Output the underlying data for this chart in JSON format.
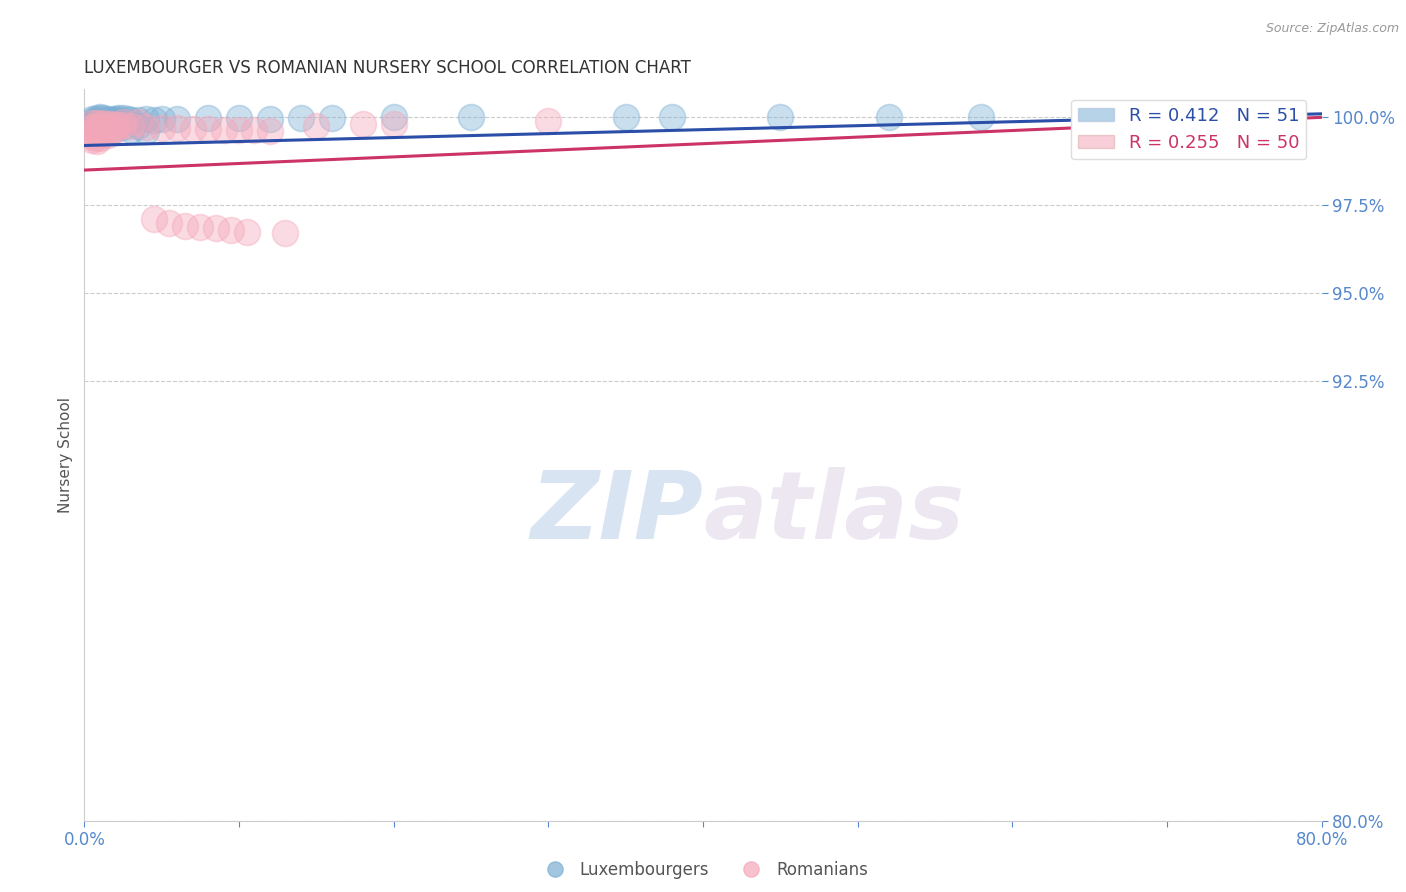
{
  "title": "LUXEMBOURGER VS ROMANIAN NURSERY SCHOOL CORRELATION CHART",
  "source": "Source: ZipAtlas.com",
  "ylabel": "Nursery School",
  "xlim": [
    0.0,
    0.8
  ],
  "ylim": [
    0.8,
    1.008
  ],
  "xticks": [
    0.0,
    0.1,
    0.2,
    0.3,
    0.4,
    0.5,
    0.6,
    0.7,
    0.8
  ],
  "xticklabels": [
    "0.0%",
    "",
    "",
    "",
    "",
    "",
    "",
    "",
    "80.0%"
  ],
  "yticks": [
    0.8,
    0.925,
    0.95,
    0.975,
    1.0
  ],
  "yticklabels": [
    "80.0%",
    "92.5%",
    "95.0%",
    "97.5%",
    "100.0%"
  ],
  "blue_R": 0.412,
  "blue_N": 51,
  "pink_R": 0.255,
  "pink_N": 50,
  "blue_color": "#7BAFD4",
  "pink_color": "#F4A7B9",
  "blue_line_color": "#2B4FA8",
  "pink_line_color": "#CC3366",
  "background_color": "#FFFFFF",
  "grid_color": "#CCCCCC",
  "axis_color": "#CCCCCC",
  "title_color": "#333333",
  "label_color": "#555555",
  "tick_color": "#5588CC",
  "watermark_zip": "ZIP",
  "watermark_atlas": "atlas",
  "legend_label_blue": "Luxembourgers",
  "legend_label_pink": "Romanians",
  "blue_scatter_x": [
    0.005,
    0.008,
    0.01,
    0.012,
    0.015,
    0.018,
    0.02,
    0.022,
    0.025,
    0.028,
    0.005,
    0.008,
    0.01,
    0.012,
    0.015,
    0.018,
    0.02,
    0.022,
    0.025,
    0.005,
    0.008,
    0.01,
    0.012,
    0.015,
    0.018,
    0.03,
    0.035,
    0.04,
    0.045,
    0.05,
    0.06,
    0.08,
    0.1,
    0.12,
    0.14,
    0.16,
    0.2,
    0.25,
    0.35,
    0.45,
    0.58,
    0.65,
    0.72,
    0.38,
    0.52,
    0.015,
    0.02,
    0.025,
    0.03,
    0.035,
    0.04
  ],
  "blue_scatter_y": [
    0.9995,
    0.9998,
    1.0,
    0.9997,
    0.9995,
    0.9993,
    0.9996,
    0.9999,
    0.9997,
    0.9994,
    0.999,
    0.9992,
    0.9988,
    0.9985,
    0.9991,
    0.9989,
    0.9987,
    0.9993,
    0.9986,
    0.9982,
    0.998,
    0.9978,
    0.9983,
    0.9981,
    0.9984,
    0.9993,
    0.9991,
    0.9994,
    0.9992,
    0.9996,
    0.9995,
    0.9997,
    0.9998,
    0.9996,
    0.9999,
    0.9999,
    1.0,
    1.0,
    1.0,
    1.0,
    1.0,
    1.0,
    1.0,
    1.0,
    1.0,
    0.997,
    0.9968,
    0.9972,
    0.9965,
    0.9975,
    0.996
  ],
  "pink_scatter_x": [
    0.005,
    0.008,
    0.01,
    0.012,
    0.015,
    0.018,
    0.02,
    0.022,
    0.025,
    0.005,
    0.008,
    0.01,
    0.012,
    0.015,
    0.018,
    0.02,
    0.005,
    0.008,
    0.01,
    0.012,
    0.015,
    0.005,
    0.008,
    0.01,
    0.005,
    0.008,
    0.03,
    0.04,
    0.05,
    0.06,
    0.07,
    0.08,
    0.09,
    0.1,
    0.11,
    0.12,
    0.15,
    0.2,
    0.025,
    0.035,
    0.3,
    0.18,
    0.045,
    0.055,
    0.065,
    0.075,
    0.085,
    0.095,
    0.105,
    0.13
  ],
  "pink_scatter_y": [
    0.9985,
    0.9983,
    0.9981,
    0.9984,
    0.9982,
    0.998,
    0.9978,
    0.9979,
    0.9977,
    0.9972,
    0.9974,
    0.997,
    0.9968,
    0.9966,
    0.9965,
    0.9963,
    0.9958,
    0.9957,
    0.9955,
    0.9952,
    0.995,
    0.9945,
    0.9942,
    0.994,
    0.9935,
    0.9932,
    0.9975,
    0.9973,
    0.9971,
    0.997,
    0.9968,
    0.9966,
    0.9965,
    0.9965,
    0.9963,
    0.9962,
    0.9975,
    0.998,
    0.9988,
    0.9986,
    0.999,
    0.9982,
    0.971,
    0.97,
    0.9692,
    0.9688,
    0.9685,
    0.968,
    0.9675,
    0.9672
  ],
  "blue_trend_x": [
    0.0,
    0.8
  ],
  "blue_trend_y": [
    0.992,
    1.001
  ],
  "pink_trend_x": [
    0.0,
    0.8
  ],
  "pink_trend_y": [
    0.985,
    1.0
  ]
}
